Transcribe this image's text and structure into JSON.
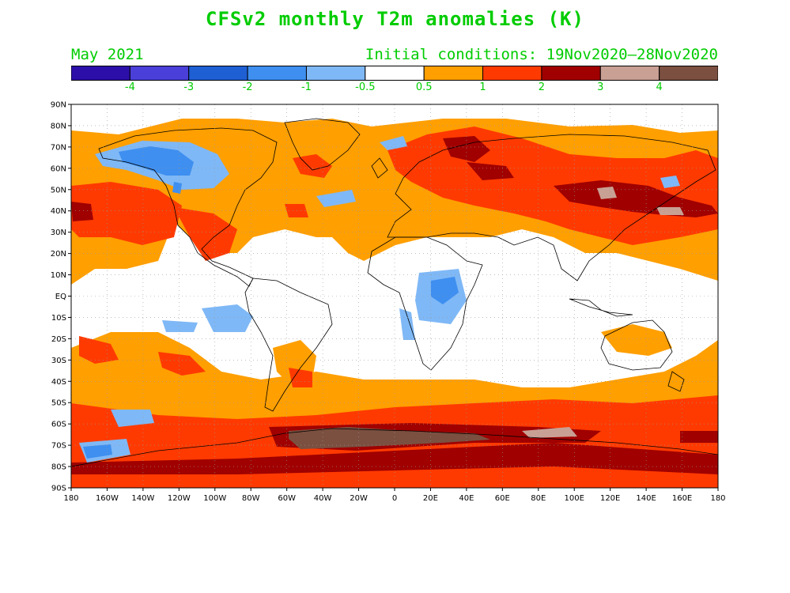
{
  "title": "CFSv2 monthly T2m anomalies (K)",
  "period": "May 2021",
  "initial_conditions": "Initial conditions: 19Nov2020–28Nov2020",
  "colorbar": {
    "colors": [
      "#2b0fa8",
      "#4a3fd8",
      "#1f5fd4",
      "#3e8ff0",
      "#7fb8f6",
      "#ffffff",
      "#ff9f00",
      "#ff3a00",
      "#a00000",
      "#c9a094",
      "#7b5040"
    ],
    "labels": [
      "-4",
      "-3",
      "-2",
      "-1",
      "-0.5",
      "0.5",
      "1",
      "2",
      "3",
      "4"
    ]
  },
  "axes": {
    "lat_labels": [
      "90N",
      "80N",
      "70N",
      "60N",
      "50N",
      "40N",
      "30N",
      "20N",
      "10N",
      "EQ",
      "10S",
      "20S",
      "30S",
      "40S",
      "50S",
      "60S",
      "70S",
      "80S",
      "90S"
    ],
    "lon_labels": [
      "180",
      "160W",
      "140W",
      "120W",
      "100W",
      "80W",
      "60W",
      "40W",
      "20W",
      "0",
      "20E",
      "40E",
      "60E",
      "80E",
      "100E",
      "120E",
      "140E",
      "160E",
      "180"
    ]
  },
  "colors": {
    "text_accent": "#00cc00",
    "cold_light": "#7fb8f6",
    "cold_mid": "#3e8ff0",
    "warm_light": "#ff9f00",
    "warm_mid": "#ff3a00",
    "warm_dark": "#a00000",
    "warm_pink": "#c9a094",
    "warm_brown": "#7b5040"
  }
}
